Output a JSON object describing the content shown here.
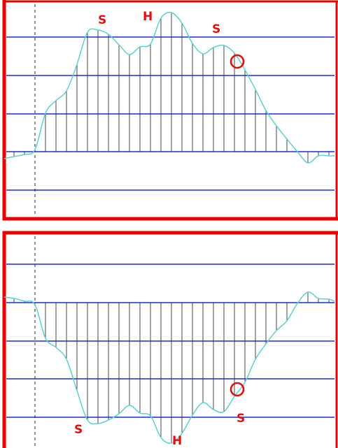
{
  "colors": {
    "frame": "#ee0000",
    "gridline": "#1c2fd0",
    "curve": "#5fd0d0",
    "drop_line": "#333333",
    "marker": "#e01010"
  },
  "top_panel": {
    "markers": {
      "shoulder_left": "S",
      "head": "H",
      "shoulder_right": "S"
    },
    "highlight": "circle"
  },
  "bottom_panel": {
    "markers": {
      "shoulder_left": "S",
      "head": "H",
      "shoulder_right": "S"
    },
    "highlight": "circle"
  }
}
